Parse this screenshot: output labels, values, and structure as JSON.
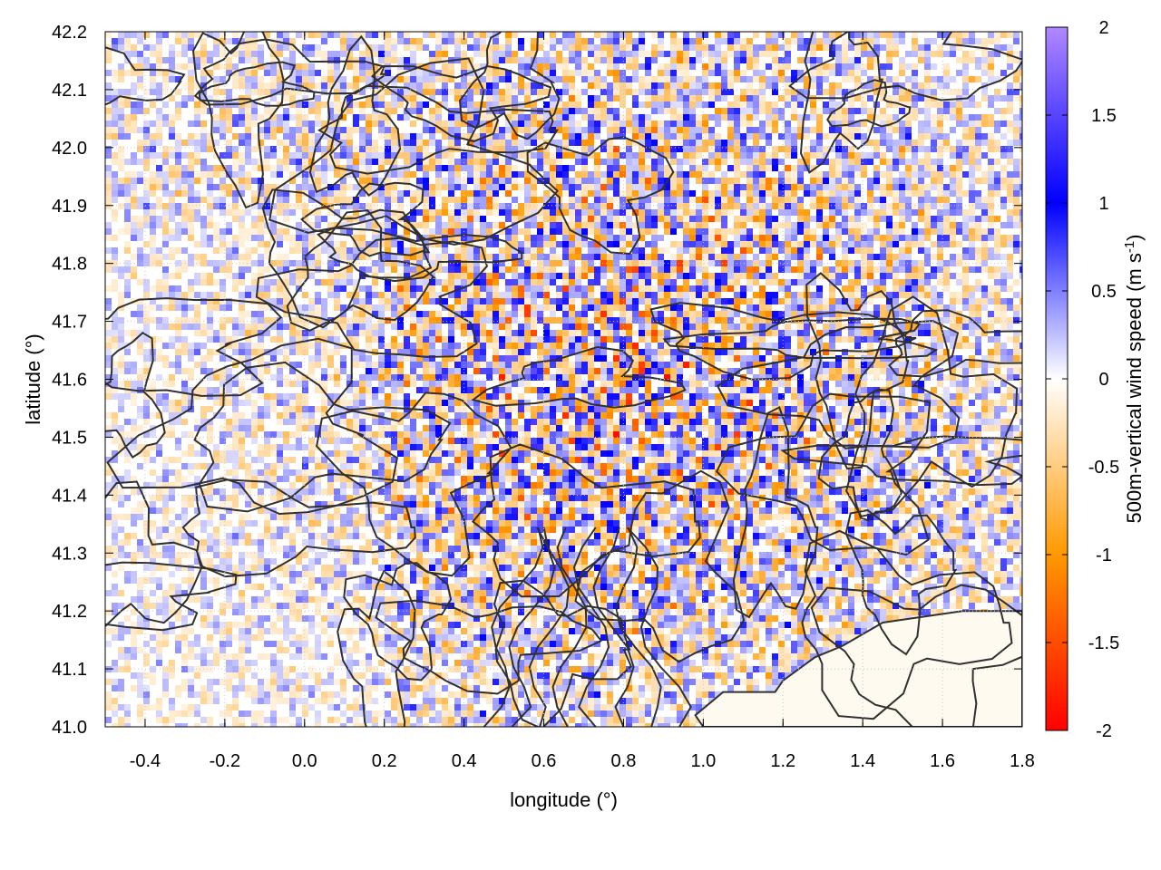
{
  "chart_data": {
    "type": "heatmap",
    "title": "",
    "xlabel": "longitude (°)",
    "ylabel": "latitude (°)",
    "colorbar_label": "500m-vertical wind speed (m s",
    "colorbar_label_sup": "-1",
    "colorbar_label_close": ")",
    "xlim": [
      -0.5,
      1.8
    ],
    "ylim": [
      41.0,
      42.2
    ],
    "clim": [
      -2,
      2
    ],
    "x_ticks": [
      -0.4,
      -0.2,
      0.0,
      0.2,
      0.4,
      0.6,
      0.8,
      1.0,
      1.2,
      1.4,
      1.6,
      1.8
    ],
    "x_tick_labels": [
      "-0.4",
      "-0.2",
      "0.0",
      "0.2",
      "0.4",
      "0.6",
      "0.8",
      "1.0",
      "1.2",
      "1.4",
      "1.6",
      "1.8"
    ],
    "y_ticks": [
      41.0,
      41.1,
      41.2,
      41.3,
      41.4,
      41.5,
      41.6,
      41.7,
      41.8,
      41.9,
      42.0,
      42.1,
      42.2
    ],
    "y_tick_labels": [
      "41.0",
      "41.1",
      "41.2",
      "41.3",
      "41.4",
      "41.5",
      "41.6",
      "41.7",
      "41.8",
      "41.9",
      "42.0",
      "42.1",
      "42.2"
    ],
    "colorbar_ticks": [
      -2,
      -1.5,
      -1,
      -0.5,
      0,
      0.5,
      1,
      1.5,
      2
    ],
    "colorbar_tick_labels": [
      "-2",
      "-1.5",
      "-1",
      "-0.5",
      "0",
      "0.5",
      "1",
      "1.5",
      "2"
    ],
    "colormap": [
      {
        "v": -2,
        "color": "#ff0000"
      },
      {
        "v": -1,
        "color": "#ff9900"
      },
      {
        "v": 0,
        "color": "#ffffff"
      },
      {
        "v": 1,
        "color": "#0000ff"
      },
      {
        "v": 2,
        "color": "#b088ff"
      }
    ],
    "grid": true,
    "contour_color": "#303030",
    "sea_region_lonlat": [
      [
        1.0,
        41.0
      ],
      [
        1.8,
        41.0
      ],
      [
        1.8,
        41.2
      ],
      [
        1.65,
        41.2
      ],
      [
        1.55,
        41.19
      ],
      [
        1.45,
        41.18
      ],
      [
        1.35,
        41.14
      ],
      [
        1.28,
        41.12
      ],
      [
        1.2,
        41.08
      ],
      [
        1.18,
        41.06
      ],
      [
        1.05,
        41.06
      ],
      [
        0.98,
        41.02
      ]
    ]
  }
}
